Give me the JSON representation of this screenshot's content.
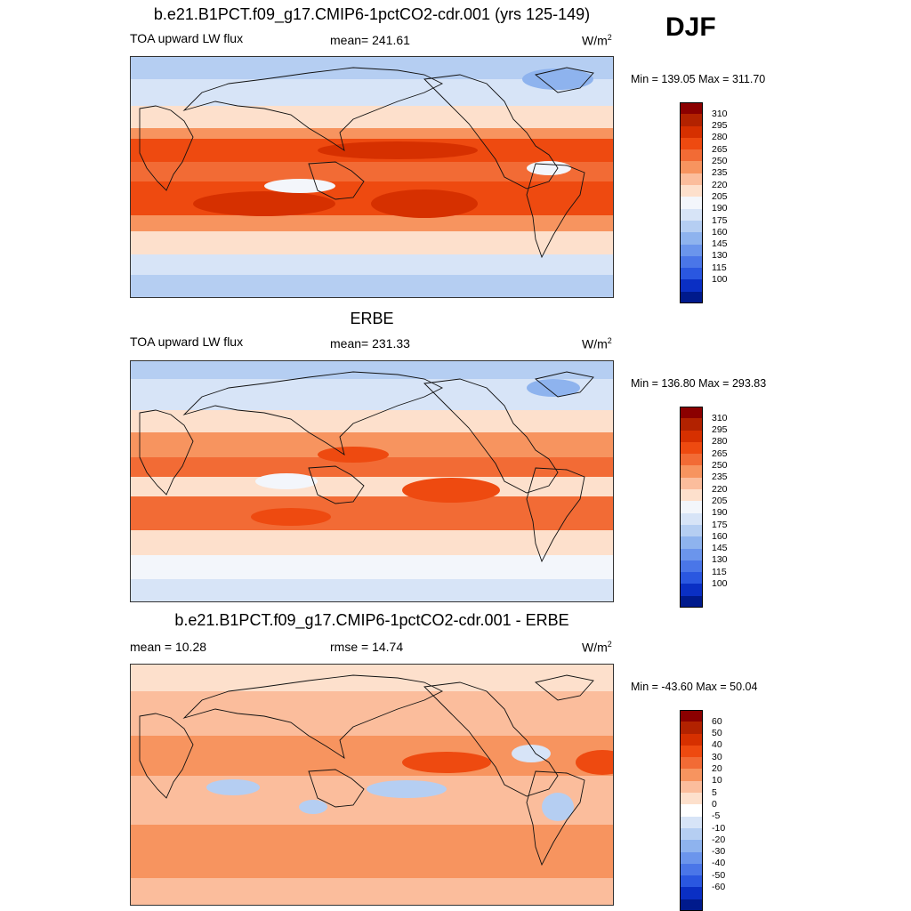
{
  "season": "DJF",
  "panels": [
    {
      "title": "b.e21.B1PCT.f09_g17.CMIP6-1pctCO2-cdr.001 (yrs 125-149)",
      "left_label": "TOA upward LW flux",
      "center_label": "mean= 241.61",
      "units_base": "W/m",
      "units_exp": "2",
      "minmax": "Min = 139.05 Max = 311.70",
      "colorbar": {
        "labels": [
          "310",
          "295",
          "280",
          "265",
          "250",
          "235",
          "220",
          "205",
          "190",
          "175",
          "160",
          "145",
          "130",
          "115",
          "100"
        ],
        "colors": [
          "#8b0000",
          "#b22200",
          "#d63000",
          "#ee4a10",
          "#f26b35",
          "#f7945f",
          "#fbbd9c",
          "#fde0cc",
          "#f3f6fb",
          "#d7e4f7",
          "#b5cef2",
          "#8eb3ee",
          "#6b95ec",
          "#4a76e8",
          "#2a57e0",
          "#0a2fc4",
          "#001a8c"
        ]
      },
      "map_type": "model"
    },
    {
      "title": "ERBE",
      "left_label": "TOA upward LW flux",
      "center_label": "mean= 231.33",
      "units_base": "W/m",
      "units_exp": "2",
      "minmax": "Min = 136.80 Max = 293.83",
      "colorbar": {
        "labels": [
          "310",
          "295",
          "280",
          "265",
          "250",
          "235",
          "220",
          "205",
          "190",
          "175",
          "160",
          "145",
          "130",
          "115",
          "100"
        ],
        "colors": [
          "#8b0000",
          "#b22200",
          "#d63000",
          "#ee4a10",
          "#f26b35",
          "#f7945f",
          "#fbbd9c",
          "#fde0cc",
          "#f3f6fb",
          "#d7e4f7",
          "#b5cef2",
          "#8eb3ee",
          "#6b95ec",
          "#4a76e8",
          "#2a57e0",
          "#0a2fc4",
          "#001a8c"
        ]
      },
      "map_type": "obs"
    },
    {
      "title": "b.e21.B1PCT.f09_g17.CMIP6-1pctCO2-cdr.001 - ERBE",
      "left_label": "mean =  10.28",
      "center_label": "rmse =  14.74",
      "units_base": "W/m",
      "units_exp": "2",
      "minmax": "Min = -43.60 Max =  50.04",
      "colorbar": {
        "labels": [
          "60",
          "50",
          "40",
          "30",
          "20",
          "10",
          "5",
          "0",
          "-5",
          "-10",
          "-20",
          "-30",
          "-40",
          "-50",
          "-60"
        ],
        "colors": [
          "#8b0000",
          "#b22200",
          "#d63000",
          "#ee4a10",
          "#f26b35",
          "#f7945f",
          "#fbbd9c",
          "#fde0cc",
          "#ffffff",
          "#d7e4f7",
          "#b5cef2",
          "#8eb3ee",
          "#6b95ec",
          "#4a76e8",
          "#2a57e0",
          "#0a2fc4",
          "#001a8c"
        ]
      },
      "map_type": "diff"
    }
  ]
}
